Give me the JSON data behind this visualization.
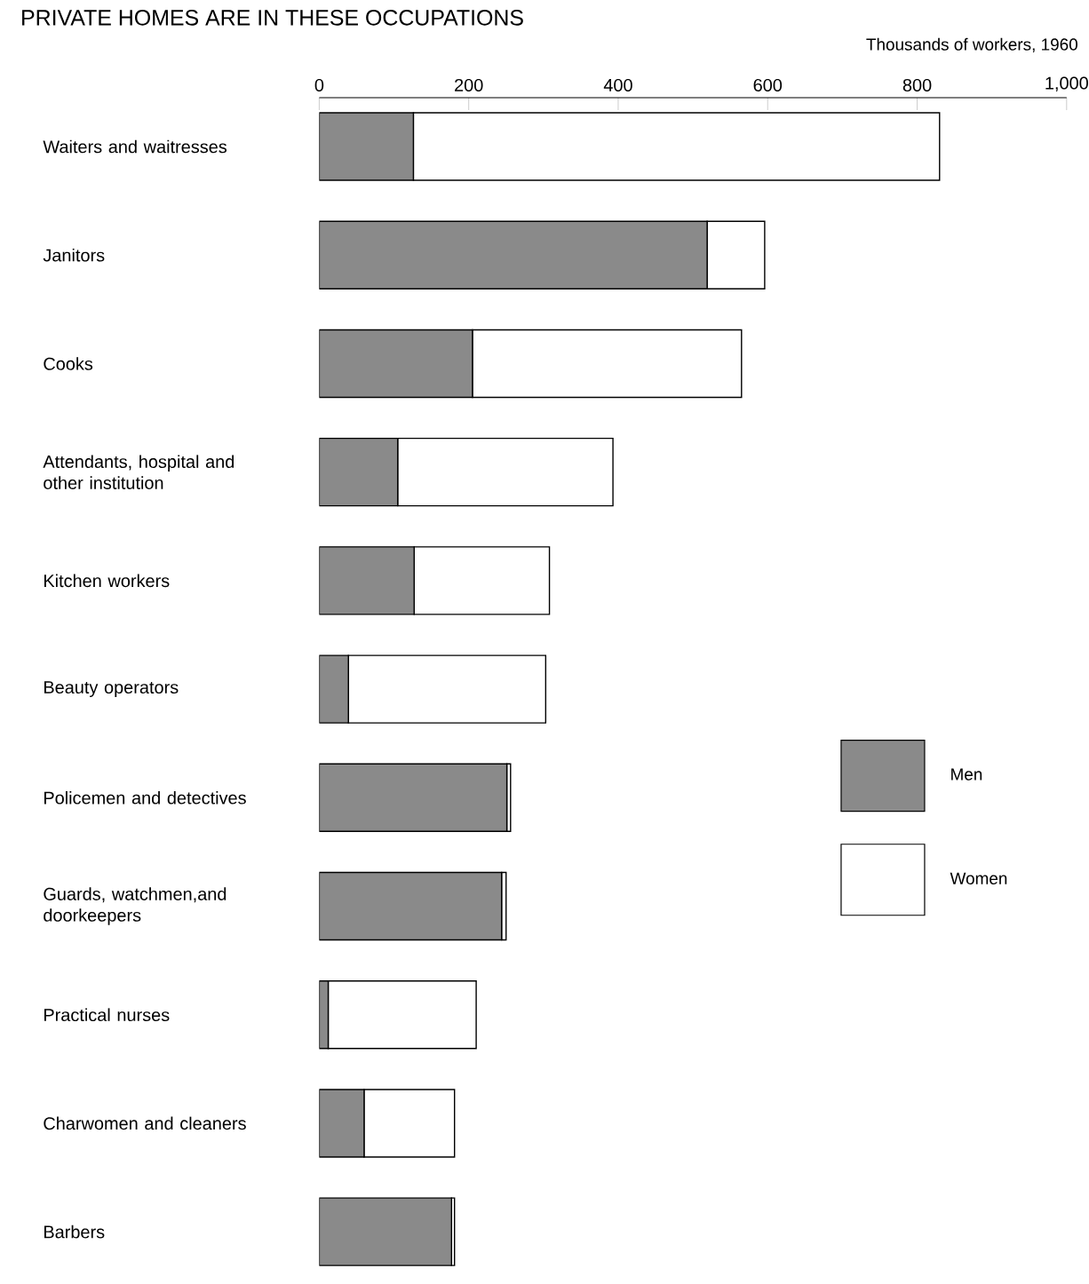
{
  "chart_data": {
    "type": "bar",
    "orientation": "horizontal",
    "stacked": true,
    "title": "PRIVATE HOMES ARE IN THESE OCCUPATIONS",
    "xlabel": "Thousands of workers, 1960",
    "categories": [
      "Waiters and waitresses",
      "Janitors",
      "Cooks",
      "Attendants, hospital and other institution",
      "Kitchen workers",
      "Beauty operators",
      "Policemen and detectives",
      "Guards, watchmen,and doorkeepers",
      "Practical nurses",
      "Charwomen and cleaners",
      "Barbers"
    ],
    "series": [
      {
        "name": "Men",
        "color": "#8a8a8a",
        "values": [
          126,
          519,
          205,
          105,
          127,
          39,
          251,
          244,
          12,
          60,
          177
        ]
      },
      {
        "name": "Women",
        "color": "#ffffff",
        "values": [
          704,
          77,
          360,
          288,
          181,
          264,
          5,
          6,
          198,
          121,
          4
        ]
      }
    ],
    "xlim": [
      0,
      1000
    ],
    "xticks": [
      0,
      200,
      400,
      600,
      800,
      {
        "value": 1000,
        "label": "1,000"
      }
    ],
    "legend": "right"
  }
}
